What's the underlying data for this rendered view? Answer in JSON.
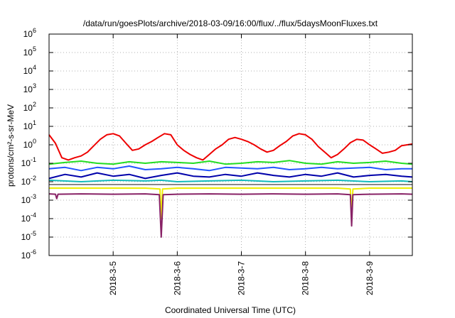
{
  "chart_data": {
    "type": "line",
    "title": "/data/run/goesPlots/archive/2018-03-09/16:00/flux/../flux/5daysMoonFluxes.txt",
    "xlabel": "Coordinated Universal Time (UTC)",
    "ylabel": "protons/cm²-s-sr-MeV",
    "yscale": "log",
    "ylim": [
      1e-06,
      1000000.0
    ],
    "xlim": [
      "2018-03-04 00:00",
      "2018-03-09 16:00"
    ],
    "grid": true,
    "legend": "none",
    "y_ticks": [
      {
        "mant": "10",
        "exp": "-6"
      },
      {
        "mant": "10",
        "exp": "-5"
      },
      {
        "mant": "10",
        "exp": "-4"
      },
      {
        "mant": "10",
        "exp": "-3"
      },
      {
        "mant": "10",
        "exp": "-2"
      },
      {
        "mant": "10",
        "exp": "-1"
      },
      {
        "mant": "10",
        "exp": "0"
      },
      {
        "mant": "10",
        "exp": "1"
      },
      {
        "mant": "10",
        "exp": "2"
      },
      {
        "mant": "10",
        "exp": "3"
      },
      {
        "mant": "10",
        "exp": "4"
      },
      {
        "mant": "10",
        "exp": "5"
      },
      {
        "mant": "10",
        "exp": "6"
      }
    ],
    "x_ticks": [
      "2018-3-5",
      "2018-3-6",
      "2018-3-7",
      "2018-3-8",
      "2018-3-9"
    ],
    "x_tick_days": [
      1,
      2,
      3,
      4,
      5
    ],
    "series": [
      {
        "color": "#ee0000",
        "x": [
          0,
          0.1,
          0.2,
          0.3,
          0.4,
          0.5,
          0.6,
          0.7,
          0.8,
          0.9,
          1.0,
          1.1,
          1.2,
          1.3,
          1.4,
          1.5,
          1.6,
          1.7,
          1.8,
          1.9,
          2.0,
          2.1,
          2.2,
          2.3,
          2.4,
          2.5,
          2.6,
          2.7,
          2.8,
          2.9,
          3.0,
          3.1,
          3.2,
          3.3,
          3.4,
          3.5,
          3.6,
          3.7,
          3.8,
          3.9,
          4.0,
          4.1,
          4.2,
          4.3,
          4.4,
          4.5,
          4.6,
          4.7,
          4.8,
          4.9,
          5.0,
          5.1,
          5.2,
          5.3,
          5.4,
          5.5,
          5.667
        ],
        "y": [
          3.5,
          1.2,
          0.2,
          0.15,
          0.2,
          0.25,
          0.4,
          0.9,
          2.0,
          3.5,
          4.0,
          3.0,
          1.2,
          0.5,
          0.6,
          1.0,
          1.5,
          2.5,
          4.0,
          3.5,
          1.0,
          0.5,
          0.3,
          0.2,
          0.15,
          0.3,
          0.6,
          1.0,
          2.0,
          2.5,
          2.0,
          1.5,
          1.0,
          0.6,
          0.4,
          0.5,
          0.9,
          1.5,
          3.0,
          4.0,
          3.5,
          2.0,
          0.8,
          0.4,
          0.2,
          0.3,
          0.6,
          1.3,
          2.0,
          1.8,
          1.0,
          0.6,
          0.35,
          0.4,
          0.5,
          0.9,
          1.1
        ]
      },
      {
        "color": "#22dd22",
        "x": [
          0,
          0.25,
          0.5,
          0.75,
          1.0,
          1.25,
          1.5,
          1.75,
          2.0,
          2.25,
          2.5,
          2.75,
          3.0,
          3.25,
          3.5,
          3.75,
          4.0,
          4.25,
          4.5,
          4.75,
          5.0,
          5.25,
          5.5,
          5.667
        ],
        "y": [
          0.09,
          0.11,
          0.13,
          0.1,
          0.09,
          0.12,
          0.1,
          0.12,
          0.11,
          0.1,
          0.13,
          0.09,
          0.1,
          0.12,
          0.11,
          0.14,
          0.1,
          0.09,
          0.12,
          0.1,
          0.11,
          0.13,
          0.1,
          0.09
        ]
      },
      {
        "color": "#2255ff",
        "x": [
          0,
          0.25,
          0.5,
          0.75,
          1.0,
          1.25,
          1.5,
          1.75,
          2.0,
          2.25,
          2.5,
          2.75,
          3.0,
          3.25,
          3.5,
          3.75,
          4.0,
          4.25,
          4.5,
          4.75,
          5.0,
          5.25,
          5.5,
          5.667
        ],
        "y": [
          0.05,
          0.06,
          0.04,
          0.06,
          0.05,
          0.07,
          0.045,
          0.05,
          0.06,
          0.05,
          0.04,
          0.06,
          0.055,
          0.05,
          0.06,
          0.045,
          0.05,
          0.06,
          0.05,
          0.055,
          0.06,
          0.045,
          0.05,
          0.05
        ]
      },
      {
        "color": "#0000aa",
        "x": [
          0,
          0.25,
          0.5,
          0.75,
          1.0,
          1.25,
          1.5,
          1.75,
          2.0,
          2.25,
          2.5,
          2.75,
          3.0,
          3.25,
          3.5,
          3.75,
          4.0,
          4.25,
          4.5,
          4.75,
          5.0,
          5.25,
          5.5,
          5.667
        ],
        "y": [
          0.015,
          0.025,
          0.018,
          0.03,
          0.02,
          0.025,
          0.015,
          0.022,
          0.03,
          0.02,
          0.018,
          0.025,
          0.02,
          0.03,
          0.022,
          0.018,
          0.025,
          0.02,
          0.03,
          0.018,
          0.022,
          0.025,
          0.02,
          0.018
        ]
      },
      {
        "color": "#11bbbb",
        "x": [
          0,
          0.5,
          1.0,
          1.5,
          1.75,
          2.0,
          2.5,
          3.0,
          3.5,
          4.0,
          4.5,
          5.0,
          5.5,
          5.667
        ],
        "y": [
          0.012,
          0.01,
          0.012,
          0.011,
          0.012,
          0.01,
          0.011,
          0.012,
          0.01,
          0.011,
          0.012,
          0.01,
          0.011,
          0.01
        ]
      },
      {
        "color": "#888888",
        "x": [
          0,
          0.5,
          1.0,
          1.5,
          2.0,
          2.5,
          3.0,
          3.5,
          4.0,
          4.5,
          5.0,
          5.5,
          5.667
        ],
        "y": [
          0.007,
          0.007,
          0.007,
          0.007,
          0.007,
          0.007,
          0.007,
          0.007,
          0.007,
          0.007,
          0.007,
          0.007,
          0.007
        ]
      },
      {
        "color": "#eeee00",
        "x": [
          0,
          0.5,
          1.0,
          1.5,
          1.73,
          1.75,
          1.77,
          2.0,
          2.5,
          3.0,
          3.5,
          4.0,
          4.5,
          4.7,
          4.72,
          4.74,
          5.0,
          5.5,
          5.667
        ],
        "y": [
          0.0045,
          0.0045,
          0.0045,
          0.0045,
          0.004,
          0.0001,
          0.004,
          0.0045,
          0.0045,
          0.0045,
          0.0045,
          0.0045,
          0.0045,
          0.004,
          0.0002,
          0.004,
          0.0045,
          0.0045,
          0.0045
        ]
      },
      {
        "color": "#882266",
        "x": [
          0,
          0.1,
          0.12,
          0.14,
          0.5,
          1.0,
          1.5,
          1.72,
          1.75,
          1.78,
          2.0,
          2.5,
          3.0,
          3.5,
          4.0,
          4.5,
          4.7,
          4.72,
          4.74,
          5.0,
          5.5,
          5.667
        ],
        "y": [
          0.0022,
          0.0021,
          0.0012,
          0.0021,
          0.0022,
          0.0021,
          0.0022,
          0.002,
          1e-05,
          0.002,
          0.0021,
          0.0022,
          0.0021,
          0.0022,
          0.0021,
          0.0022,
          0.002,
          4e-05,
          0.002,
          0.0021,
          0.0022,
          0.0021
        ]
      }
    ]
  }
}
